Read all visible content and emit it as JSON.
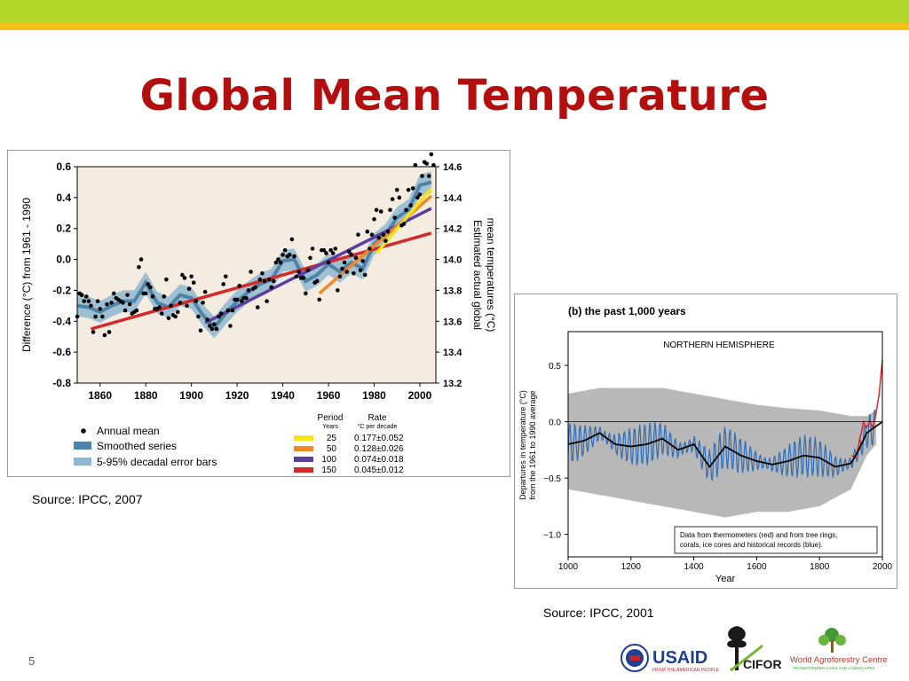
{
  "slide": {
    "title": "Global Mean Temperature",
    "page_number": "5",
    "source_left": "Source: IPCC, 2007",
    "source_right": "Source: IPCC, 2001",
    "colors": {
      "title": "#b30f0f",
      "top_band": "#b5d62a",
      "top_stripe": "#f3c417"
    }
  },
  "logos": {
    "usaid": "USAID",
    "usaid_tagline": "FROM THE AMERICAN PEOPLE",
    "cifor": "CIFOR",
    "icraf": "World Agroforestry Centre",
    "icraf_tagline": "TRANSFORMING LIVES AND LANDSCAPES"
  },
  "chart_data": [
    {
      "type": "line",
      "xlabel": "",
      "ylabel": "Difference (°C) from 1961 - 1990",
      "ylabel_right": "Estimated actual global mean temperatures (°C)",
      "xlim": [
        1850,
        2007
      ],
      "ylim": [
        -0.8,
        0.6
      ],
      "ylim_right": [
        13.2,
        14.6
      ],
      "x_ticks": [
        "1860",
        "1880",
        "1900",
        "1920",
        "1940",
        "1960",
        "1980",
        "2000"
      ],
      "y_ticks": [
        "0.6",
        "0.4",
        "0.2",
        "0.0",
        "-0.2",
        "-0.4",
        "-0.6",
        "-0.8"
      ],
      "y_ticks_right": [
        "14.6",
        "14.4",
        "14.2",
        "14.0",
        "13.8",
        "13.6",
        "13.4",
        "13.2"
      ],
      "grid": false,
      "colors": {
        "background": "#f4ece1",
        "band": "#8fb8d0",
        "smooth": "#4f83a8",
        "dot": "#000000"
      },
      "annual_mean": {
        "x": [
          1850,
          1851,
          1852,
          1853,
          1854,
          1855,
          1856,
          1857,
          1858,
          1859,
          1860,
          1861,
          1862,
          1863,
          1864,
          1865,
          1866,
          1867,
          1868,
          1869,
          1870,
          1871,
          1872,
          1873,
          1874,
          1875,
          1876,
          1877,
          1878,
          1879,
          1880,
          1881,
          1882,
          1883,
          1884,
          1885,
          1886,
          1887,
          1888,
          1889,
          1890,
          1891,
          1892,
          1893,
          1894,
          1895,
          1896,
          1897,
          1898,
          1899,
          1900,
          1901,
          1902,
          1903,
          1904,
          1905,
          1906,
          1907,
          1908,
          1909,
          1910,
          1911,
          1912,
          1913,
          1914,
          1915,
          1916,
          1917,
          1918,
          1919,
          1920,
          1921,
          1922,
          1923,
          1924,
          1925,
          1926,
          1927,
          1928,
          1929,
          1930,
          1931,
          1932,
          1933,
          1934,
          1935,
          1936,
          1937,
          1938,
          1939,
          1940,
          1941,
          1942,
          1943,
          1944,
          1945,
          1946,
          1947,
          1948,
          1949,
          1950,
          1951,
          1952,
          1953,
          1954,
          1955,
          1956,
          1957,
          1958,
          1959,
          1960,
          1961,
          1962,
          1963,
          1964,
          1965,
          1966,
          1967,
          1968,
          1969,
          1970,
          1971,
          1972,
          1973,
          1974,
          1975,
          1976,
          1977,
          1978,
          1979,
          1980,
          1981,
          1982,
          1983,
          1984,
          1985,
          1986,
          1987,
          1988,
          1989,
          1990,
          1991,
          1992,
          1993,
          1994,
          1995,
          1996,
          1997,
          1998,
          1999,
          2000,
          2001,
          2002,
          2003,
          2004,
          2005,
          2006
        ],
        "y": [
          -0.37,
          -0.22,
          -0.23,
          -0.27,
          -0.24,
          -0.27,
          -0.3,
          -0.47,
          -0.37,
          -0.27,
          -0.32,
          -0.37,
          -0.49,
          -0.29,
          -0.47,
          -0.28,
          -0.22,
          -0.25,
          -0.26,
          -0.27,
          -0.28,
          -0.33,
          -0.23,
          -0.29,
          -0.35,
          -0.34,
          -0.33,
          -0.05,
          0.0,
          -0.22,
          -0.22,
          -0.16,
          -0.18,
          -0.24,
          -0.32,
          -0.32,
          -0.31,
          -0.35,
          -0.24,
          -0.13,
          -0.38,
          -0.3,
          -0.36,
          -0.37,
          -0.34,
          -0.28,
          -0.1,
          -0.12,
          -0.3,
          -0.19,
          -0.11,
          -0.15,
          -0.27,
          -0.37,
          -0.46,
          -0.28,
          -0.21,
          -0.39,
          -0.43,
          -0.45,
          -0.42,
          -0.45,
          -0.37,
          -0.35,
          -0.16,
          -0.11,
          -0.33,
          -0.43,
          -0.33,
          -0.26,
          -0.26,
          -0.17,
          -0.27,
          -0.25,
          -0.25,
          -0.2,
          -0.08,
          -0.19,
          -0.18,
          -0.31,
          -0.13,
          -0.09,
          -0.14,
          -0.27,
          -0.13,
          -0.18,
          -0.14,
          -0.02,
          0.0,
          -0.02,
          0.03,
          0.06,
          0.02,
          0.03,
          0.13,
          0.02,
          -0.11,
          -0.08,
          -0.12,
          -0.12,
          -0.22,
          -0.07,
          0.01,
          0.07,
          -0.15,
          -0.14,
          -0.26,
          0.06,
          0.06,
          0.04,
          -0.02,
          0.06,
          0.04,
          0.07,
          -0.2,
          -0.11,
          -0.06,
          -0.02,
          -0.08,
          0.05,
          0.03,
          -0.09,
          0.01,
          0.16,
          -0.07,
          -0.01,
          -0.1,
          0.18,
          0.07,
          0.16,
          0.26,
          0.32,
          0.14,
          0.31,
          0.16,
          0.12,
          0.18,
          0.32,
          0.39,
          0.27,
          0.45,
          0.4,
          0.22,
          0.23,
          0.32,
          0.45,
          0.35,
          0.46,
          0.61,
          0.4,
          0.42,
          0.54,
          0.63,
          0.62,
          0.54,
          0.68,
          0.61
        ]
      },
      "smoothed_series": {
        "x": [
          1850,
          1855,
          1860,
          1865,
          1870,
          1875,
          1880,
          1885,
          1890,
          1895,
          1900,
          1905,
          1910,
          1915,
          1920,
          1925,
          1930,
          1935,
          1940,
          1945,
          1950,
          1955,
          1960,
          1965,
          1970,
          1975,
          1980,
          1985,
          1990,
          1995,
          2000,
          2005
        ],
        "y": [
          -0.3,
          -0.31,
          -0.34,
          -0.3,
          -0.27,
          -0.27,
          -0.15,
          -0.28,
          -0.31,
          -0.23,
          -0.25,
          -0.36,
          -0.44,
          -0.35,
          -0.27,
          -0.21,
          -0.16,
          -0.13,
          -0.01,
          0.0,
          -0.14,
          -0.1,
          -0.03,
          -0.08,
          -0.02,
          -0.06,
          0.1,
          0.16,
          0.27,
          0.32,
          0.48,
          0.5
        ]
      },
      "error_band_halfwidth": 0.07,
      "trends": [
        {
          "period": "25",
          "rate": "0.177±0.052",
          "color": "#f5e516",
          "x": [
            1981,
            2005
          ],
          "y": [
            0.04,
            0.46
          ]
        },
        {
          "period": "50",
          "rate": "0.128±0.026",
          "color": "#f0892a",
          "x": [
            1956,
            2005
          ],
          "y": [
            -0.22,
            0.41
          ]
        },
        {
          "period": "100",
          "rate": "0.074±0.018",
          "color": "#5b3ea0",
          "x": [
            1906,
            2005
          ],
          "y": [
            -0.41,
            0.33
          ]
        },
        {
          "period": "150",
          "rate": "0.045±0.012",
          "color": "#d4282b",
          "x": [
            1856,
            2005
          ],
          "y": [
            -0.45,
            0.17
          ]
        }
      ],
      "legend": {
        "items": [
          "Annual mean",
          "Smoothed series",
          "5-95% decadal error bars"
        ],
        "period_header": "Period",
        "period_unit": "Years",
        "rate_header": "Rate",
        "rate_unit": "°C  per decade"
      }
    },
    {
      "type": "line",
      "title": "(b) the past 1,000 years",
      "subtitle": "NORTHERN HEMISPHERE",
      "xlabel": "Year",
      "ylabel": "Departures in temperature (°C) from the 1961 to 1990 average",
      "xlim": [
        1000,
        2000
      ],
      "ylim": [
        -1.2,
        0.8
      ],
      "x_ticks": [
        "1000",
        "1200",
        "1400",
        "1600",
        "1800",
        "2000"
      ],
      "y_ticks": [
        "0.5",
        "0.0",
        "−0.5",
        "−1.0"
      ],
      "note": "Data from thermometers (red) and from tree rings, corals, ice cores and historical records (blue).",
      "grid": false,
      "colors": {
        "uncertainty": "#b8b8b8",
        "proxy": "#2f6db5",
        "smooth": "#000000",
        "instrumental": "#e0262b"
      },
      "smoothed_series": {
        "x": [
          1000,
          1050,
          1100,
          1150,
          1200,
          1250,
          1300,
          1350,
          1400,
          1450,
          1500,
          1550,
          1600,
          1650,
          1700,
          1750,
          1800,
          1850,
          1900,
          1925,
          1950,
          1975,
          2000
        ],
        "y": [
          -0.2,
          -0.17,
          -0.1,
          -0.2,
          -0.22,
          -0.2,
          -0.15,
          -0.25,
          -0.2,
          -0.4,
          -0.22,
          -0.3,
          -0.35,
          -0.38,
          -0.35,
          -0.3,
          -0.32,
          -0.4,
          -0.37,
          -0.25,
          -0.1,
          -0.05,
          0.0
        ]
      },
      "uncertainty_band": {
        "x": [
          1000,
          1100,
          1200,
          1300,
          1400,
          1500,
          1600,
          1700,
          1800,
          1900,
          1950,
          1980
        ],
        "upper": [
          0.25,
          0.3,
          0.3,
          0.3,
          0.25,
          0.2,
          0.15,
          0.12,
          0.1,
          0.05,
          0.05,
          0.1
        ],
        "lower": [
          -0.6,
          -0.65,
          -0.7,
          -0.75,
          -0.8,
          -0.85,
          -0.8,
          -0.8,
          -0.75,
          -0.6,
          -0.3,
          -0.2
        ]
      },
      "instrumental": {
        "x": [
          1902,
          1915,
          1925,
          1940,
          1950,
          1960,
          1970,
          1980,
          1990,
          2000
        ],
        "y": [
          -0.3,
          -0.32,
          -0.2,
          0.0,
          -0.05,
          0.0,
          -0.05,
          0.08,
          0.25,
          0.55
        ]
      }
    }
  ]
}
